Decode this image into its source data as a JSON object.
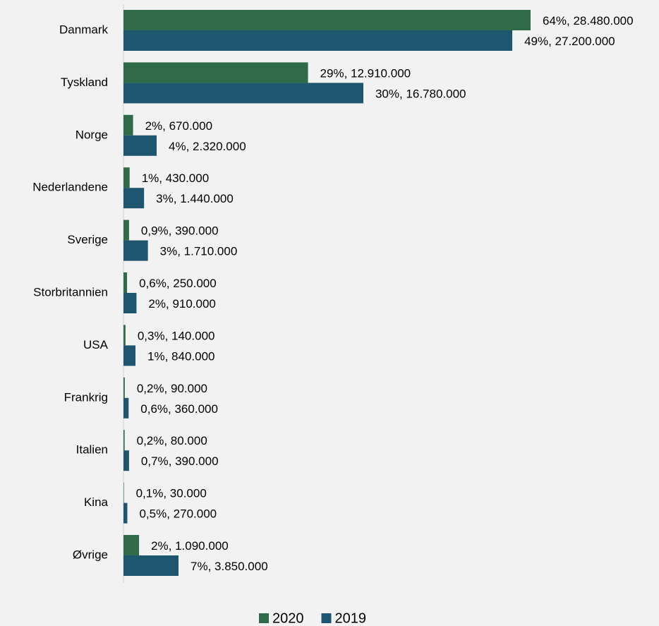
{
  "chart_data": {
    "type": "bar",
    "orientation": "horizontal",
    "categories": [
      "Danmark",
      "Tyskland",
      "Norge",
      "Nederlandene",
      "Sverige",
      "Storbritannien",
      "USA",
      "Frankrig",
      "Italien",
      "Kina",
      "Øvrige"
    ],
    "series": [
      {
        "name": "2020",
        "color": "#2f6b48",
        "values": [
          28480000,
          12910000,
          670000,
          430000,
          390000,
          250000,
          140000,
          90000,
          80000,
          30000,
          1090000
        ],
        "value_labels": [
          "64%, 28.480.000",
          "29%, 12.910.000",
          "2%, 670.000",
          "1%, 430.000",
          "0,9%, 390.000",
          "0,6%, 250.000",
          "0,3%, 140.000",
          "0,2%, 90.000",
          "0,2%, 80.000",
          "0,1%, 30.000",
          "2%, 1.090.000"
        ]
      },
      {
        "name": "2019",
        "color": "#1f566f",
        "values": [
          27200000,
          16780000,
          2320000,
          1440000,
          1710000,
          910000,
          840000,
          360000,
          390000,
          270000,
          3850000
        ],
        "value_labels": [
          "49%, 27.200.000",
          "30%, 16.780.000",
          "4%, 2.320.000",
          "3%, 1.440.000",
          "3%, 1.710.000",
          "2%, 910.000",
          "1%, 840.000",
          "0,6%, 360.000",
          "0,7%, 390.000",
          "0,5%, 270.000",
          "7%, 3.850.000"
        ]
      }
    ],
    "legend": "bottom"
  }
}
